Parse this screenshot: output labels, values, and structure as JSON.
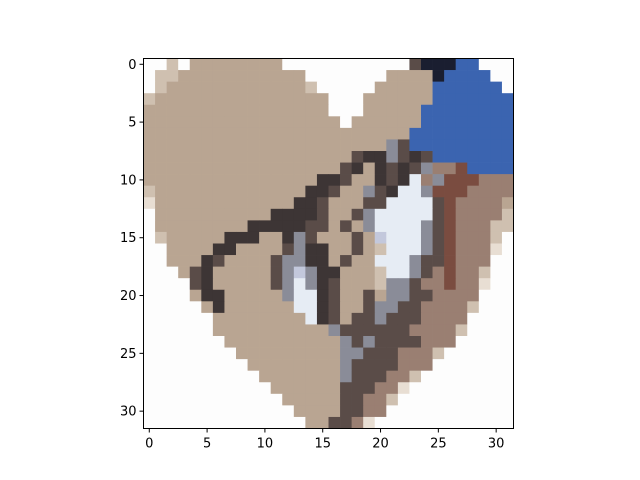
{
  "chart_data": {
    "type": "heatmap",
    "title": "",
    "xlabel": "",
    "ylabel": "",
    "xlim": [
      -0.5,
      31.5
    ],
    "ylim": [
      31.5,
      -0.5
    ],
    "y_axis_inverted": true,
    "grid": false,
    "x_ticks": [
      0,
      5,
      10,
      15,
      20,
      25,
      30
    ],
    "y_ticks": [
      0,
      5,
      10,
      15,
      20,
      25,
      30
    ],
    "x_tick_labels": [
      "0",
      "5",
      "10",
      "15",
      "20",
      "25",
      "30"
    ],
    "y_tick_labels": [
      "0",
      "5",
      "10",
      "15",
      "20",
      "25",
      "30"
    ],
    "grid_size": [
      32,
      32
    ],
    "palette": {
      ".": "#fdfdfd",
      "t": "#b9a592",
      "s": "#cfc0b0",
      "l": "#e8ded3",
      "k": "#3d3535",
      "d": "#5a4c48",
      "g": "#8a8c98",
      "p": "#c3c8dc",
      "w": "#e6ecf4",
      "B": "#3b64b0",
      "N": "#1a1e30",
      "R": "#7a4c40",
      "n": "#9a7f72"
    },
    "pixel_rows": [
      "..s.tttttttt...........dNNNBB...",
      ".ssttttttttttt.......ttttNBBBB..",
      ".stttttttttttts.....tttttBBBBBB.",
      "sttttttttttttttt...ttttttBBBBBBB",
      "tttttttttttttttt...tttttBBBBBBBB",
      "ttttttttttttttttt.ttttttBBBBBBBB",
      "tttttttttttttttttttttttBBBBBBBBB",
      "tttttttttttttttttttttgdBBBBBBBBB",
      "ttttttttttttttttttdkkgdkdBBBBBBB",
      "tttttttttttttttttdktkdkdgnnRBBBB",
      "tttttttttttttttkkdttkdkwngRRRnnn",
      "stttttttttttttkkdttgdkwwgRRRnnnn",
      "lttttttttttttkkdtttddwwwwdRnnnnt",
      ".ttttttttttkkkkdttdgwwwwwdRnnnns",
      ".ttttttttkkkkkddtdtgwwwwgdRnnnss",
      ".stttttkkkttkgdtttdtpwwwgdRnnns.",
      "..ttttkkttttdgkkttdtswwwgdRnnnl.",
      "..tttkdttttdggkktdttwwwgddRnnn..",
      "...tdktttttdgpgkktttswwgdnRnns..",
      "....dktttttdgwgkdtttsggdnnRnnl..",
      "....tkktttttgwwkdttdtggddnnnn...",
      ".....tkttttttwwkdttdggddnnnns...",
      "......ttttttttwkdtddgdddnnnn....",
      "......ttttttttttgddddddnnnns....",
      ".......ttttttttttgdgddddnnn.....",
      "........tttttttttggdddnnns......",
      ".........ttttttttgddddnnn.......",
      "..........tttttttgdddnns........",
      "...........ttttttdddnnl.........",
      "............tttttddnns..........",
      ".............ttttddnn...........",
      "..............ttddnl............"
    ]
  }
}
